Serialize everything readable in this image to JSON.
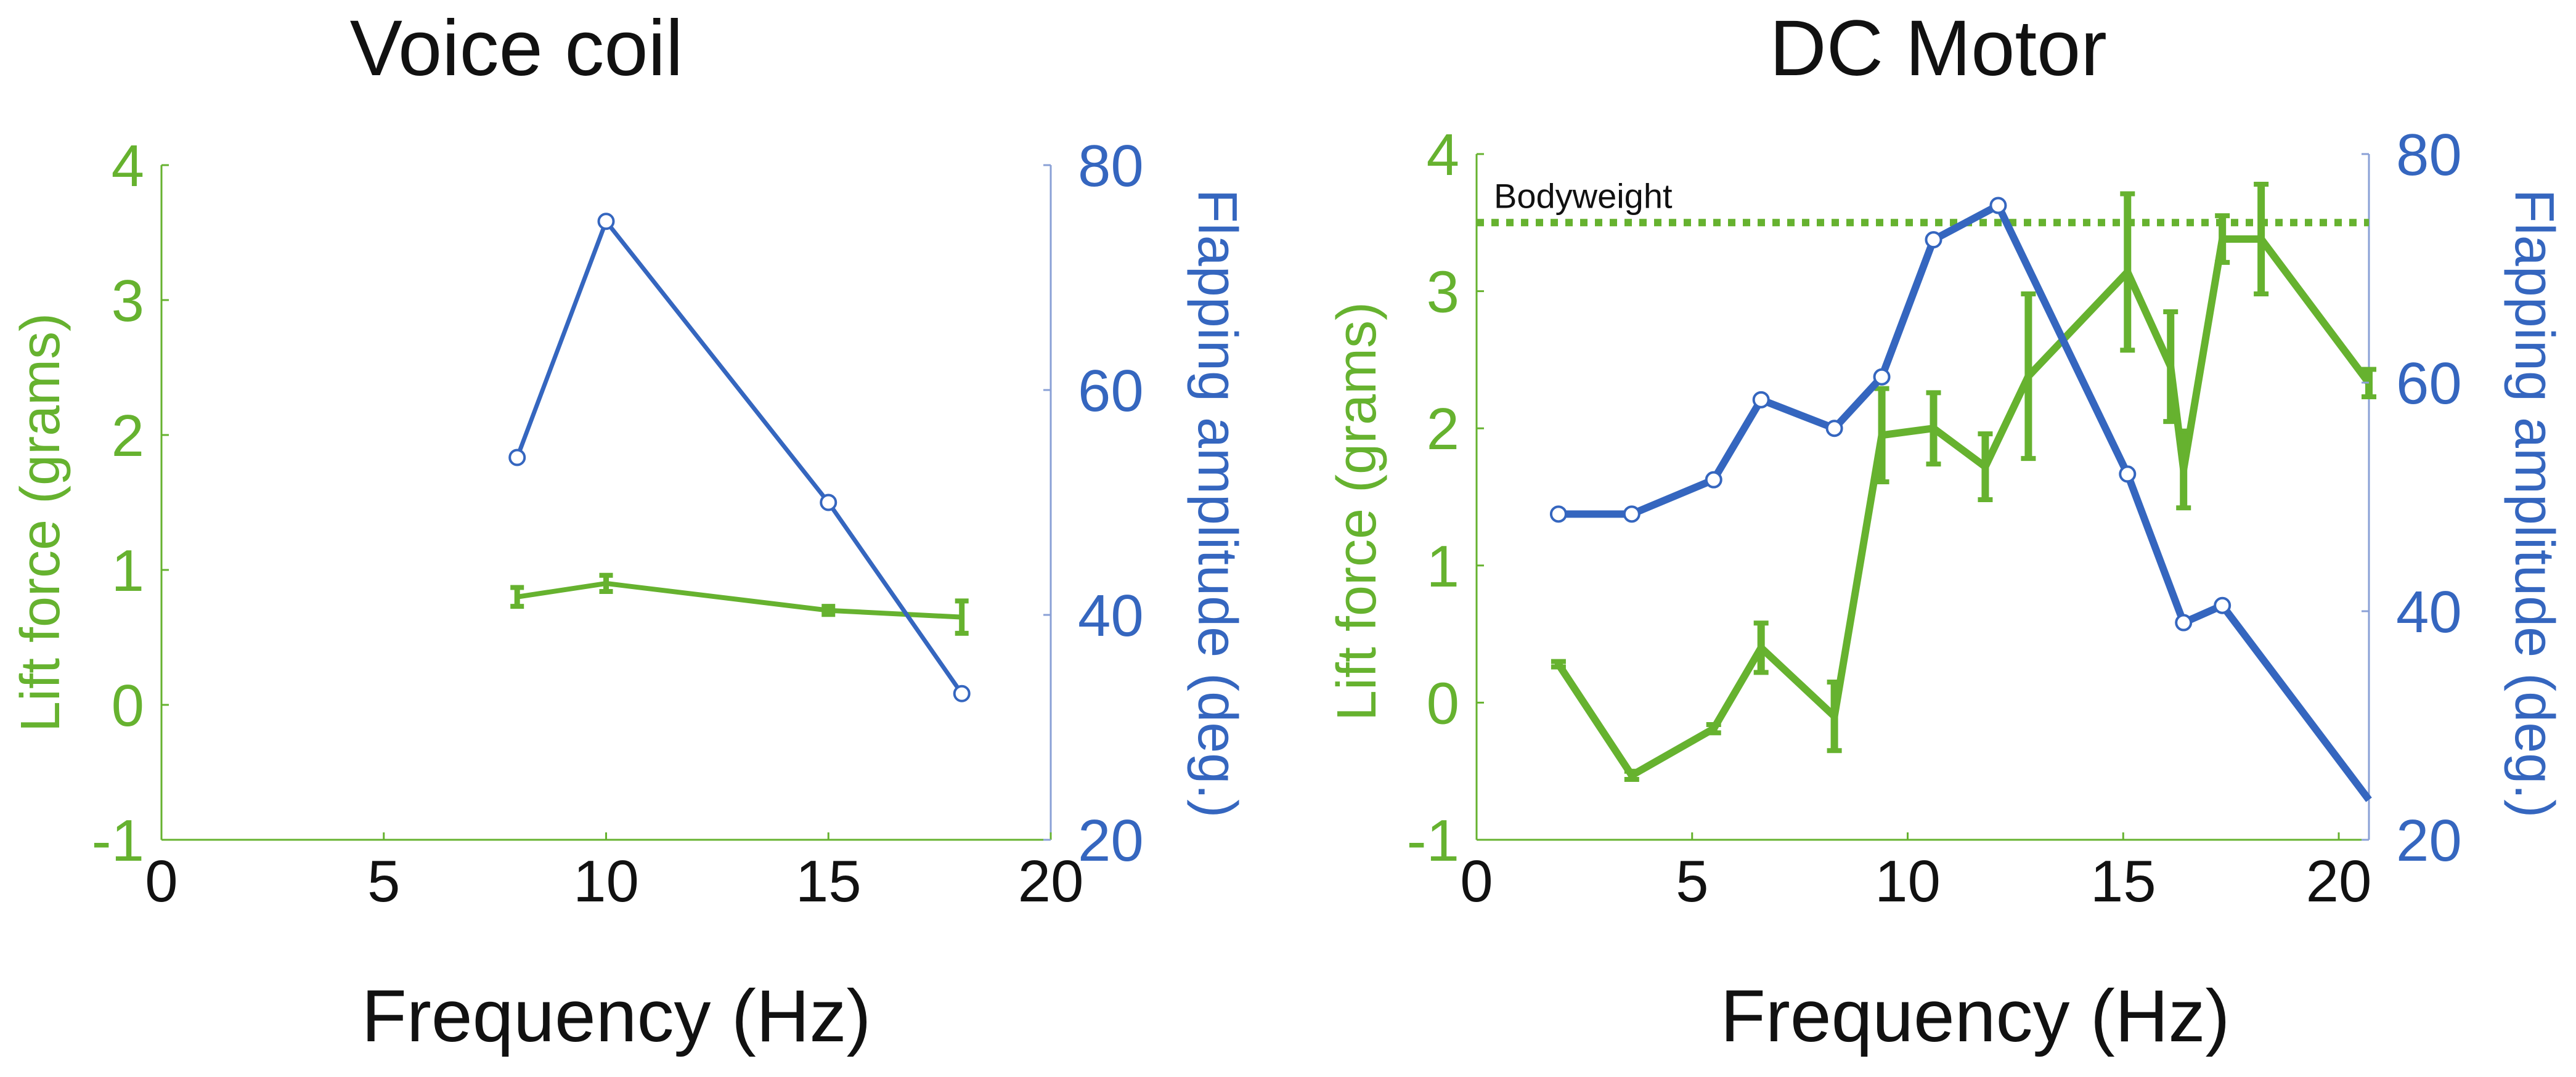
{
  "colors": {
    "green": "#66B22F",
    "blue": "#3566BF",
    "text": "#111111",
    "axis": "#8aa0d6"
  },
  "chart_data": [
    {
      "type": "line",
      "title": "Voice coil",
      "xlabel": "Frequency (Hz)",
      "ylabel_left": "Lift force (grams)",
      "ylabel_right": "Flapping amplitude (deg.)",
      "xlim": [
        0,
        20
      ],
      "ylim_left": [
        -1,
        4
      ],
      "ylim_right": [
        20,
        80
      ],
      "xticks": [
        "0",
        "5",
        "10",
        "15",
        "20"
      ],
      "xtick_values": [
        0,
        5,
        10,
        15,
        20
      ],
      "yticks_left": [
        "-1",
        "0",
        "1",
        "2",
        "3",
        "4"
      ],
      "ytick_values_left": [
        -1,
        0,
        1,
        2,
        3,
        4
      ],
      "yticks_right": [
        "20",
        "40",
        "60",
        "80"
      ],
      "ytick_values_right": [
        20,
        40,
        60,
        80
      ],
      "series": [
        {
          "name": "Lift force",
          "axis": "left",
          "x": [
            8,
            10,
            15,
            18
          ],
          "y": [
            0.8,
            0.9,
            0.7,
            0.65
          ],
          "err": [
            0.07,
            0.06,
            0.03,
            0.12
          ]
        },
        {
          "name": "Flapping amplitude",
          "axis": "right",
          "x": [
            8,
            10,
            15,
            18
          ],
          "y": [
            54,
            75,
            50,
            33
          ]
        }
      ]
    },
    {
      "type": "line",
      "title": "DC Motor",
      "xlabel": "Frequency (Hz)",
      "ylabel_left": "Lift force (grams)",
      "ylabel_right": "Flapping amplitude (deg.)",
      "xlim": [
        0,
        20.7
      ],
      "ylim_left": [
        -1,
        4
      ],
      "ylim_right": [
        20,
        80
      ],
      "xticks": [
        "0",
        "5",
        "10",
        "15",
        "20"
      ],
      "xtick_values": [
        0,
        5,
        10,
        15,
        20
      ],
      "yticks_left": [
        "-1",
        "0",
        "1",
        "2",
        "3",
        "4"
      ],
      "ytick_values_left": [
        -1,
        0,
        1,
        2,
        3,
        4
      ],
      "yticks_right": [
        "20",
        "40",
        "60",
        "80"
      ],
      "ytick_values_right": [
        20,
        40,
        60,
        80
      ],
      "reference_line": {
        "label": "Bodyweight",
        "y": 3.5
      },
      "series": [
        {
          "name": "Lift force",
          "axis": "left",
          "x": [
            1.9,
            3.6,
            5.5,
            6.6,
            8.3,
            9.4,
            10.6,
            11.8,
            12.8,
            15.1,
            16.1,
            16.4,
            17.3,
            18.2,
            20.7
          ],
          "y": [
            0.28,
            -0.53,
            -0.19,
            0.4,
            -0.1,
            1.95,
            2.0,
            1.72,
            2.38,
            3.14,
            2.45,
            1.7,
            3.38,
            3.38,
            2.33
          ],
          "err": [
            0.02,
            0.03,
            0.03,
            0.18,
            0.25,
            0.34,
            0.26,
            0.24,
            0.6,
            0.57,
            0.4,
            0.28,
            0.17,
            0.4,
            0.1
          ]
        },
        {
          "name": "Flapping amplitude",
          "axis": "right",
          "x": [
            1.9,
            3.6,
            5.5,
            6.6,
            8.3,
            9.4,
            10.6,
            12.1,
            15.1,
            16.4,
            17.3,
            20.7
          ],
          "y": [
            48.5,
            48.5,
            51.5,
            58.5,
            56,
            60.5,
            72.5,
            75.5,
            52,
            39,
            40.5,
            23.5
          ]
        }
      ]
    }
  ]
}
